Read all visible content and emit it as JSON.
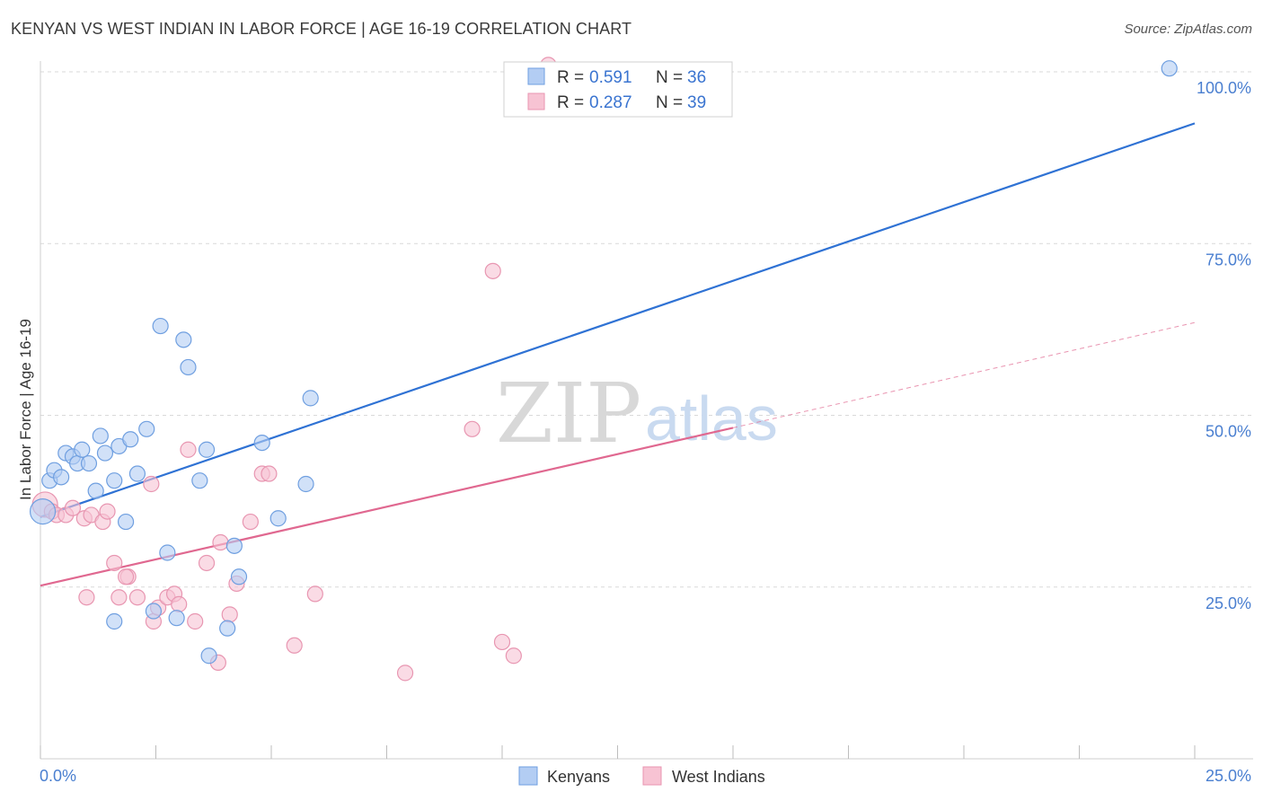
{
  "title": "KENYAN VS WEST INDIAN IN LABOR FORCE | AGE 16-19 CORRELATION CHART",
  "source": "Source: ZipAtlas.com",
  "watermark": {
    "zip": "ZIP",
    "atlas": "atlas"
  },
  "colors": {
    "blue_fill": "#b3cdf3",
    "blue_stroke": "#6f9fe0",
    "blue_line": "#2f72d4",
    "pink_fill": "#f7c3d3",
    "pink_stroke": "#e896b1",
    "pink_line": "#e06890",
    "grid": "#d9d9d9",
    "axis_text": "#4a7fd0"
  },
  "legend": {
    "rows": [
      {
        "r_label": "R =",
        "r_value": "0.591",
        "n_label": "N =",
        "n_value": "36",
        "series": "kenyans"
      },
      {
        "r_label": "R =",
        "r_value": "0.287",
        "n_label": "N =",
        "n_value": "39",
        "series": "west_indians"
      }
    ]
  },
  "chart_data": {
    "type": "scatter",
    "title": "KENYAN VS WEST INDIAN IN LABOR FORCE | AGE 16-19 CORRELATION CHART",
    "xlabel": "",
    "ylabel": "In Labor Force | Age 16-19",
    "xlim": [
      0,
      25
    ],
    "ylim": [
      0,
      100
    ],
    "x_ticks_labels": [
      {
        "value": 0,
        "label": "0.0%"
      },
      {
        "value": 25,
        "label": "25.0%"
      }
    ],
    "y_ticks_labels": [
      {
        "value": 25,
        "label": "25.0%"
      },
      {
        "value": 50,
        "label": "50.0%"
      },
      {
        "value": 75,
        "label": "75.0%"
      },
      {
        "value": 100,
        "label": "100.0%"
      }
    ],
    "series": [
      {
        "name": "Kenyans",
        "key": "kenyans",
        "r": 0.591,
        "n": 36,
        "trend": {
          "x0": 0,
          "y0": 35.2,
          "x1": 25,
          "y1": 92.5,
          "dashed_from": null
        },
        "points": [
          [
            0.05,
            36.0
          ],
          [
            0.2,
            40.5
          ],
          [
            0.3,
            42.0
          ],
          [
            0.45,
            41.0
          ],
          [
            0.55,
            44.5
          ],
          [
            0.7,
            44.0
          ],
          [
            0.8,
            43.0
          ],
          [
            0.9,
            45.0
          ],
          [
            1.05,
            43.0
          ],
          [
            1.2,
            39.0
          ],
          [
            1.3,
            47.0
          ],
          [
            1.4,
            44.5
          ],
          [
            1.6,
            40.5
          ],
          [
            1.7,
            45.5
          ],
          [
            1.85,
            34.5
          ],
          [
            1.95,
            46.5
          ],
          [
            2.1,
            41.5
          ],
          [
            2.3,
            48.0
          ],
          [
            2.6,
            63.0
          ],
          [
            2.75,
            30.0
          ],
          [
            2.45,
            21.5
          ],
          [
            2.95,
            20.5
          ],
          [
            3.1,
            61.0
          ],
          [
            3.2,
            57.0
          ],
          [
            3.45,
            40.5
          ],
          [
            3.6,
            45.0
          ],
          [
            3.65,
            15.0
          ],
          [
            4.05,
            19.0
          ],
          [
            4.2,
            31.0
          ],
          [
            4.3,
            26.5
          ],
          [
            4.8,
            46.0
          ],
          [
            5.15,
            35.0
          ],
          [
            5.75,
            40.0
          ],
          [
            5.85,
            52.5
          ],
          [
            24.45,
            100.5
          ],
          [
            1.6,
            20.0
          ]
        ]
      },
      {
        "name": "West Indians",
        "key": "west_indians",
        "r": 0.287,
        "n": 39,
        "trend": {
          "x0": 0,
          "y0": 25.2,
          "x1": 25,
          "y1": 63.5,
          "dashed_from": 15.0
        },
        "points": [
          [
            0.1,
            37.0
          ],
          [
            0.25,
            36.0
          ],
          [
            0.35,
            35.5
          ],
          [
            0.55,
            35.5
          ],
          [
            0.7,
            36.5
          ],
          [
            0.95,
            35.0
          ],
          [
            1.0,
            23.5
          ],
          [
            1.1,
            35.5
          ],
          [
            1.35,
            34.5
          ],
          [
            1.45,
            36.0
          ],
          [
            1.6,
            28.5
          ],
          [
            1.7,
            23.5
          ],
          [
            1.9,
            26.5
          ],
          [
            1.85,
            26.5
          ],
          [
            2.1,
            23.5
          ],
          [
            2.4,
            40.0
          ],
          [
            2.45,
            20.0
          ],
          [
            2.55,
            22.0
          ],
          [
            2.75,
            23.5
          ],
          [
            2.9,
            24.0
          ],
          [
            3.0,
            22.5
          ],
          [
            3.2,
            45.0
          ],
          [
            3.35,
            20.0
          ],
          [
            3.6,
            28.5
          ],
          [
            3.85,
            14.0
          ],
          [
            3.9,
            31.5
          ],
          [
            4.1,
            21.0
          ],
          [
            4.25,
            25.5
          ],
          [
            4.55,
            34.5
          ],
          [
            4.8,
            41.5
          ],
          [
            4.95,
            41.5
          ],
          [
            5.5,
            16.5
          ],
          [
            5.95,
            24.0
          ],
          [
            7.9,
            12.5
          ],
          [
            9.35,
            48.0
          ],
          [
            9.8,
            71.0
          ],
          [
            10.0,
            17.0
          ],
          [
            10.25,
            15.0
          ],
          [
            11.0,
            101.0
          ]
        ]
      }
    ],
    "bottom_legend": [
      "Kenyans",
      "West Indians"
    ]
  }
}
